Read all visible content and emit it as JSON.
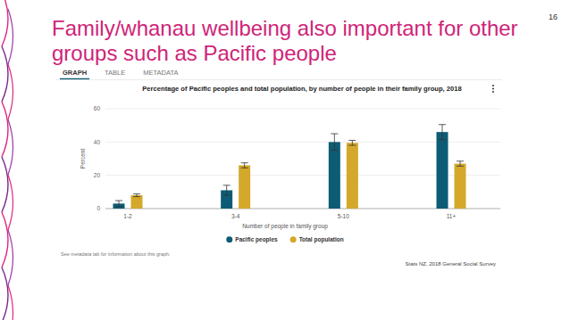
{
  "slide": {
    "title": "Family/whanau wellbeing also important for other groups such as Pacific people",
    "number": "16"
  },
  "tabs": [
    "GRAPH",
    "TABLE",
    "METADATA"
  ],
  "chart_data": {
    "type": "bar",
    "title": "Percentage of Pacific peoples and total population, by number of people in their family group, 2018",
    "x_label": "Number of people in family group",
    "y_label": "Percent",
    "categories": [
      "1-2",
      "3-4",
      "5-10",
      "11+"
    ],
    "series": [
      {
        "name": "Pacific peoples",
        "color": "#0d5c75",
        "values": [
          3,
          11,
          40,
          46
        ],
        "errors": [
          1.8,
          3,
          5,
          4.5
        ]
      },
      {
        "name": "Total population",
        "color": "#d4a82a",
        "values": [
          8,
          26,
          39.5,
          27
        ],
        "errors": [
          0.8,
          1.5,
          1.5,
          1.5
        ]
      }
    ],
    "ylim": [
      0,
      60
    ],
    "yticks": [
      0,
      20,
      40,
      60
    ],
    "grid": true,
    "legend": "bottom",
    "note": "See metadata tab for information about this graph.",
    "source": "Stats NZ, 2018 General Social Survey"
  }
}
